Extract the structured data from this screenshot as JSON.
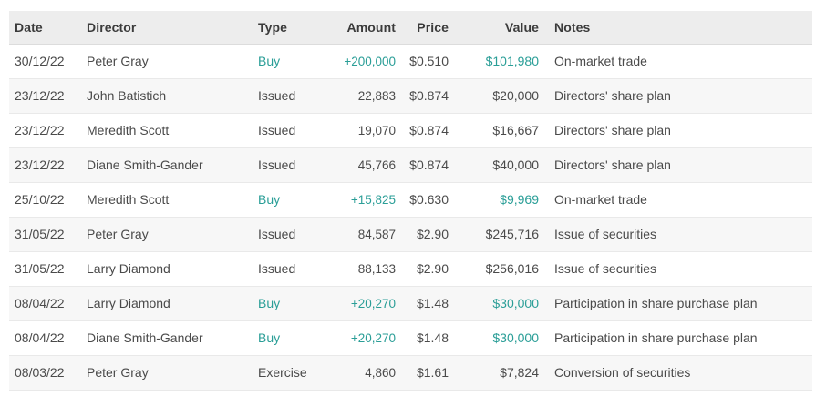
{
  "table": {
    "columns": [
      {
        "key": "date",
        "label": "Date",
        "align": "left"
      },
      {
        "key": "director",
        "label": "Director",
        "align": "left"
      },
      {
        "key": "type",
        "label": "Type",
        "align": "left"
      },
      {
        "key": "amount",
        "label": "Amount",
        "align": "right"
      },
      {
        "key": "price",
        "label": "Price",
        "align": "right"
      },
      {
        "key": "value",
        "label": "Value",
        "align": "right"
      },
      {
        "key": "notes",
        "label": "Notes",
        "align": "left"
      }
    ],
    "rows": [
      {
        "date": "30/12/22",
        "director": "Peter Gray",
        "type": "Buy",
        "amount": "+200,000",
        "price": "$0.510",
        "value": "$101,980",
        "notes": "On-market trade",
        "buy_highlight": true
      },
      {
        "date": "23/12/22",
        "director": "John Batistich",
        "type": "Issued",
        "amount": "22,883",
        "price": "$0.874",
        "value": "$20,000",
        "notes": "Directors' share plan",
        "buy_highlight": false
      },
      {
        "date": "23/12/22",
        "director": "Meredith Scott",
        "type": "Issued",
        "amount": "19,070",
        "price": "$0.874",
        "value": "$16,667",
        "notes": "Directors' share plan",
        "buy_highlight": false
      },
      {
        "date": "23/12/22",
        "director": "Diane Smith-Gander",
        "type": "Issued",
        "amount": "45,766",
        "price": "$0.874",
        "value": "$40,000",
        "notes": "Directors' share plan",
        "buy_highlight": false
      },
      {
        "date": "25/10/22",
        "director": "Meredith Scott",
        "type": "Buy",
        "amount": "+15,825",
        "price": "$0.630",
        "value": "$9,969",
        "notes": "On-market trade",
        "buy_highlight": true
      },
      {
        "date": "31/05/22",
        "director": "Peter Gray",
        "type": "Issued",
        "amount": "84,587",
        "price": "$2.90",
        "value": "$245,716",
        "notes": "Issue of securities",
        "buy_highlight": false
      },
      {
        "date": "31/05/22",
        "director": "Larry Diamond",
        "type": "Issued",
        "amount": "88,133",
        "price": "$2.90",
        "value": "$256,016",
        "notes": "Issue of securities",
        "buy_highlight": false
      },
      {
        "date": "08/04/22",
        "director": "Larry Diamond",
        "type": "Buy",
        "amount": "+20,270",
        "price": "$1.48",
        "value": "$30,000",
        "notes": "Participation in share purchase plan",
        "buy_highlight": true
      },
      {
        "date": "08/04/22",
        "director": "Diane Smith-Gander",
        "type": "Buy",
        "amount": "+20,270",
        "price": "$1.48",
        "value": "$30,000",
        "notes": "Participation in share purchase plan",
        "buy_highlight": true
      },
      {
        "date": "08/03/22",
        "director": "Peter Gray",
        "type": "Exercise",
        "amount": "4,860",
        "price": "$1.61",
        "value": "$7,824",
        "notes": "Conversion of securities",
        "buy_highlight": false
      }
    ],
    "colors": {
      "buy_accent": "#2a9e97",
      "header_bg": "#ededed",
      "stripe_bg": "#f7f7f7",
      "header_text": "#3b3b3b",
      "body_text": "#4a4a4a",
      "row_border": "#e9e9e9"
    },
    "buy_highlight_columns": [
      "type",
      "amount",
      "value"
    ]
  }
}
